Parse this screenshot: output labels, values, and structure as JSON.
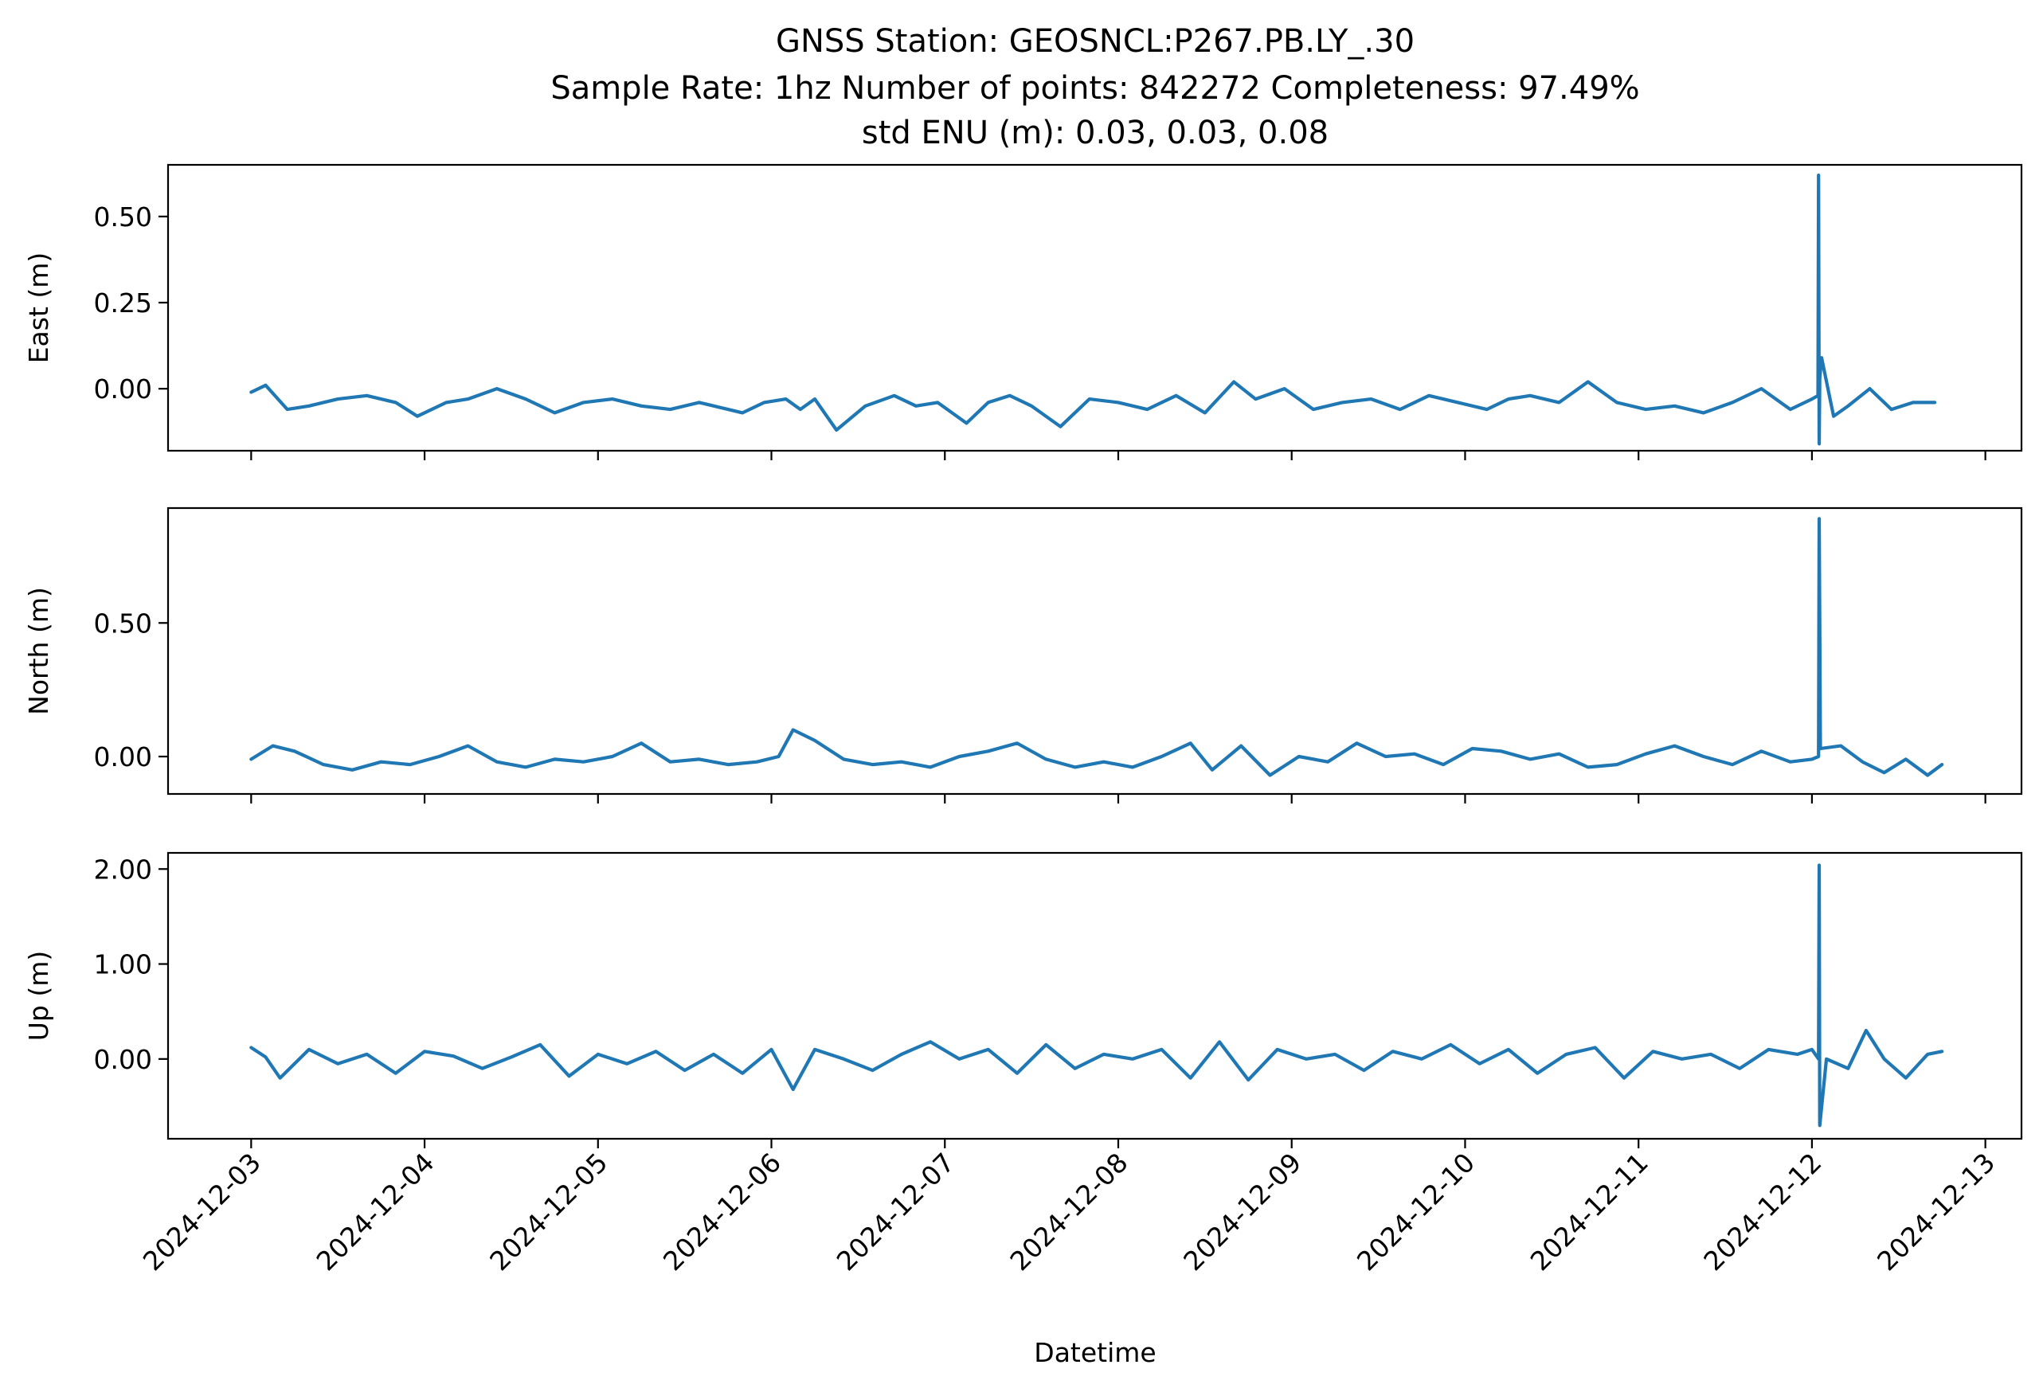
{
  "figure": {
    "title_lines": [
      "GNSS Station: GEOSNCL:P267.PB.LY_.30",
      "Sample Rate: 1hz   Number of points: 842272    Completeness:  97.49%",
      "std ENU (m):  0.03, 0.03, 0.08"
    ],
    "xlabel": "Datetime",
    "series_color": "#1f77b4"
  },
  "chart_data": {
    "type": "line",
    "title": "GNSS Station: GEOSNCL:P267.PB.LY_.30",
    "subtitle": "Sample Rate: 1hz   Number of points: 842272    Completeness:  97.49%  |  std ENU (m):  0.03, 0.03, 0.08",
    "xlabel": "Datetime",
    "x_ticks": [
      "2024-12-03",
      "2024-12-04",
      "2024-12-05",
      "2024-12-06",
      "2024-12-07",
      "2024-12-08",
      "2024-12-09",
      "2024-12-10",
      "2024-12-11",
      "2024-12-12",
      "2024-12-13"
    ],
    "xlim": [
      "2024-12-02T12:30",
      "2024-12-13T05:00"
    ],
    "grid": false,
    "panels": [
      {
        "name": "east",
        "ylabel": "East (m)",
        "ylim": [
          -0.18,
          0.65
        ],
        "y_ticks": [
          0.0,
          0.25,
          0.5
        ],
        "y_tick_labels": [
          "0.00",
          "0.25",
          "0.50"
        ],
        "series": [
          {
            "x": [
              "2024-12-03T00:00",
              "2024-12-03T02:00",
              "2024-12-03T05:00",
              "2024-12-03T08:00",
              "2024-12-03T12:00",
              "2024-12-03T16:00",
              "2024-12-03T20:00",
              "2024-12-03T23:00",
              "2024-12-04T03:00",
              "2024-12-04T06:00",
              "2024-12-04T10:00",
              "2024-12-04T14:00",
              "2024-12-04T18:00",
              "2024-12-04T22:00",
              "2024-12-05T02:00",
              "2024-12-05T06:00",
              "2024-12-05T10:00",
              "2024-12-05T14:00",
              "2024-12-05T18:00",
              "2024-12-05T20:00",
              "2024-12-05T23:00",
              "2024-12-06T02:00",
              "2024-12-06T04:00",
              "2024-12-06T06:00",
              "2024-12-06T09:00",
              "2024-12-06T13:00",
              "2024-12-06T17:00",
              "2024-12-06T20:00",
              "2024-12-06T23:00",
              "2024-12-07T03:00",
              "2024-12-07T06:00",
              "2024-12-07T09:00",
              "2024-12-07T12:00",
              "2024-12-07T16:00",
              "2024-12-07T20:00",
              "2024-12-08T00:00",
              "2024-12-08T04:00",
              "2024-12-08T08:00",
              "2024-12-08T12:00",
              "2024-12-08T16:00",
              "2024-12-08T19:00",
              "2024-12-08T23:00",
              "2024-12-09T03:00",
              "2024-12-09T07:00",
              "2024-12-09T11:00",
              "2024-12-09T15:00",
              "2024-12-09T19:00",
              "2024-12-09T23:00",
              "2024-12-10T03:00",
              "2024-12-10T06:00",
              "2024-12-10T09:00",
              "2024-12-10T13:00",
              "2024-12-10T17:00",
              "2024-12-10T21:00",
              "2024-12-11T01:00",
              "2024-12-11T05:00",
              "2024-12-11T09:00",
              "2024-12-11T13:00",
              "2024-12-11T17:00",
              "2024-12-11T21:00",
              "2024-12-12T00:00",
              "2024-12-12T00:50",
              "2024-12-12T00:55",
              "2024-12-12T01:00",
              "2024-12-12T01:05",
              "2024-12-12T01:20",
              "2024-12-12T03:00",
              "2024-12-12T05:00",
              "2024-12-12T08:00",
              "2024-12-12T11:00",
              "2024-12-12T14:00",
              "2024-12-12T17:00"
            ],
            "y": [
              -0.01,
              0.01,
              -0.06,
              -0.05,
              -0.03,
              -0.02,
              -0.04,
              -0.08,
              -0.04,
              -0.03,
              0.0,
              -0.03,
              -0.07,
              -0.04,
              -0.03,
              -0.05,
              -0.06,
              -0.04,
              -0.06,
              -0.07,
              -0.04,
              -0.03,
              -0.06,
              -0.03,
              -0.12,
              -0.05,
              -0.02,
              -0.05,
              -0.04,
              -0.1,
              -0.04,
              -0.02,
              -0.05,
              -0.11,
              -0.03,
              -0.04,
              -0.06,
              -0.02,
              -0.07,
              0.02,
              -0.03,
              0.0,
              -0.06,
              -0.04,
              -0.03,
              -0.06,
              -0.02,
              -0.04,
              -0.06,
              -0.03,
              -0.02,
              -0.04,
              0.02,
              -0.04,
              -0.06,
              -0.05,
              -0.07,
              -0.04,
              0.0,
              -0.06,
              -0.03,
              -0.02,
              0.62,
              -0.16,
              0.03,
              0.09,
              -0.08,
              -0.05,
              0.0,
              -0.06,
              -0.04,
              -0.04
            ]
          }
        ]
      },
      {
        "name": "north",
        "ylabel": "North (m)",
        "ylim": [
          -0.14,
          0.93
        ],
        "y_ticks": [
          0.0,
          0.5
        ],
        "y_tick_labels": [
          "0.00",
          "0.50"
        ],
        "series": [
          {
            "x": [
              "2024-12-03T00:00",
              "2024-12-03T03:00",
              "2024-12-03T06:00",
              "2024-12-03T10:00",
              "2024-12-03T14:00",
              "2024-12-03T18:00",
              "2024-12-03T22:00",
              "2024-12-04T02:00",
              "2024-12-04T06:00",
              "2024-12-04T10:00",
              "2024-12-04T14:00",
              "2024-12-04T18:00",
              "2024-12-04T22:00",
              "2024-12-05T02:00",
              "2024-12-05T06:00",
              "2024-12-05T10:00",
              "2024-12-05T14:00",
              "2024-12-05T18:00",
              "2024-12-05T22:00",
              "2024-12-06T01:00",
              "2024-12-06T03:00",
              "2024-12-06T06:00",
              "2024-12-06T10:00",
              "2024-12-06T14:00",
              "2024-12-06T18:00",
              "2024-12-06T22:00",
              "2024-12-07T02:00",
              "2024-12-07T06:00",
              "2024-12-07T10:00",
              "2024-12-07T14:00",
              "2024-12-07T18:00",
              "2024-12-07T22:00",
              "2024-12-08T02:00",
              "2024-12-08T06:00",
              "2024-12-08T10:00",
              "2024-12-08T13:00",
              "2024-12-08T17:00",
              "2024-12-08T21:00",
              "2024-12-09T01:00",
              "2024-12-09T05:00",
              "2024-12-09T09:00",
              "2024-12-09T13:00",
              "2024-12-09T17:00",
              "2024-12-09T21:00",
              "2024-12-10T01:00",
              "2024-12-10T05:00",
              "2024-12-10T09:00",
              "2024-12-10T13:00",
              "2024-12-10T17:00",
              "2024-12-10T21:00",
              "2024-12-11T01:00",
              "2024-12-11T05:00",
              "2024-12-11T09:00",
              "2024-12-11T13:00",
              "2024-12-11T17:00",
              "2024-12-11T21:00",
              "2024-12-12T00:00",
              "2024-12-12T00:55",
              "2024-12-12T01:00",
              "2024-12-12T01:10",
              "2024-12-12T04:00",
              "2024-12-12T07:00",
              "2024-12-12T10:00",
              "2024-12-12T13:00",
              "2024-12-12T16:00",
              "2024-12-12T18:00"
            ],
            "y": [
              -0.01,
              0.04,
              0.02,
              -0.03,
              -0.05,
              -0.02,
              -0.03,
              0.0,
              0.04,
              -0.02,
              -0.04,
              -0.01,
              -0.02,
              0.0,
              0.05,
              -0.02,
              -0.01,
              -0.03,
              -0.02,
              0.0,
              0.1,
              0.06,
              -0.01,
              -0.03,
              -0.02,
              -0.04,
              0.0,
              0.02,
              0.05,
              -0.01,
              -0.04,
              -0.02,
              -0.04,
              0.0,
              0.05,
              -0.05,
              0.04,
              -0.07,
              0.0,
              -0.02,
              0.05,
              0.0,
              0.01,
              -0.03,
              0.03,
              0.02,
              -0.01,
              0.01,
              -0.04,
              -0.03,
              0.01,
              0.04,
              0.0,
              -0.03,
              0.02,
              -0.02,
              -0.01,
              0.0,
              0.89,
              0.03,
              0.04,
              -0.02,
              -0.06,
              -0.01,
              -0.07,
              -0.03
            ]
          }
        ]
      },
      {
        "name": "up",
        "ylabel": "Up (m)",
        "ylim": [
          -0.84,
          2.17
        ],
        "y_ticks": [
          0.0,
          1.0,
          2.0
        ],
        "y_tick_labels": [
          "0.00",
          "1.00",
          "2.00"
        ],
        "series": [
          {
            "x": [
              "2024-12-03T00:00",
              "2024-12-03T02:00",
              "2024-12-03T04:00",
              "2024-12-03T08:00",
              "2024-12-03T12:00",
              "2024-12-03T16:00",
              "2024-12-03T20:00",
              "2024-12-04T00:00",
              "2024-12-04T04:00",
              "2024-12-04T08:00",
              "2024-12-04T12:00",
              "2024-12-04T16:00",
              "2024-12-04T20:00",
              "2024-12-05T00:00",
              "2024-12-05T04:00",
              "2024-12-05T08:00",
              "2024-12-05T12:00",
              "2024-12-05T16:00",
              "2024-12-05T20:00",
              "2024-12-06T00:00",
              "2024-12-06T03:00",
              "2024-12-06T06:00",
              "2024-12-06T10:00",
              "2024-12-06T14:00",
              "2024-12-06T18:00",
              "2024-12-06T22:00",
              "2024-12-07T02:00",
              "2024-12-07T06:00",
              "2024-12-07T10:00",
              "2024-12-07T14:00",
              "2024-12-07T18:00",
              "2024-12-07T22:00",
              "2024-12-08T02:00",
              "2024-12-08T06:00",
              "2024-12-08T10:00",
              "2024-12-08T14:00",
              "2024-12-08T18:00",
              "2024-12-08T22:00",
              "2024-12-09T02:00",
              "2024-12-09T06:00",
              "2024-12-09T10:00",
              "2024-12-09T14:00",
              "2024-12-09T18:00",
              "2024-12-09T22:00",
              "2024-12-10T02:00",
              "2024-12-10T06:00",
              "2024-12-10T10:00",
              "2024-12-10T14:00",
              "2024-12-10T18:00",
              "2024-12-10T22:00",
              "2024-12-11T02:00",
              "2024-12-11T06:00",
              "2024-12-11T10:00",
              "2024-12-11T14:00",
              "2024-12-11T18:00",
              "2024-12-11T22:00",
              "2024-12-12T00:00",
              "2024-12-12T00:55",
              "2024-12-12T01:00",
              "2024-12-12T01:05",
              "2024-12-12T02:00",
              "2024-12-12T05:00",
              "2024-12-12T07:30",
              "2024-12-12T10:00",
              "2024-12-12T13:00",
              "2024-12-12T16:00",
              "2024-12-12T18:00"
            ],
            "y": [
              0.12,
              0.02,
              -0.2,
              0.1,
              -0.05,
              0.05,
              -0.15,
              0.08,
              0.03,
              -0.1,
              0.02,
              0.15,
              -0.18,
              0.05,
              -0.05,
              0.08,
              -0.12,
              0.05,
              -0.15,
              0.1,
              -0.32,
              0.1,
              0.0,
              -0.12,
              0.05,
              0.18,
              0.0,
              0.1,
              -0.15,
              0.15,
              -0.1,
              0.05,
              0.0,
              0.1,
              -0.2,
              0.18,
              -0.22,
              0.1,
              0.0,
              0.05,
              -0.12,
              0.08,
              0.0,
              0.15,
              -0.05,
              0.1,
              -0.15,
              0.05,
              0.12,
              -0.2,
              0.08,
              0.0,
              0.05,
              -0.1,
              0.1,
              0.05,
              0.1,
              0.0,
              2.04,
              -0.7,
              0.0,
              -0.1,
              0.3,
              0.0,
              -0.2,
              0.05,
              0.08
            ]
          }
        ]
      }
    ]
  }
}
